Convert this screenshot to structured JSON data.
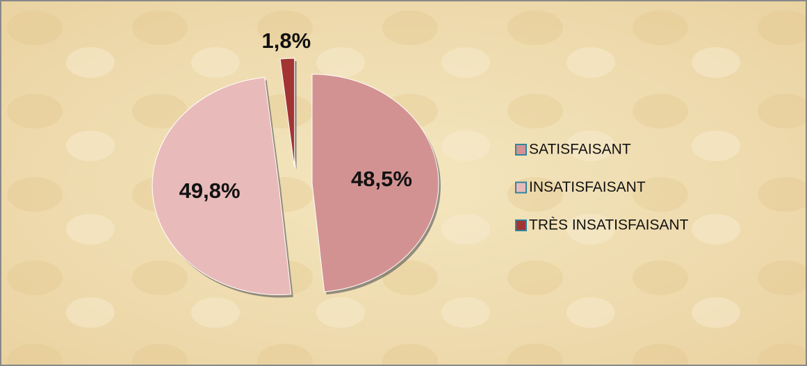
{
  "chart_data": {
    "type": "pie",
    "categories": [
      "SATISFAISANT",
      "INSATISFAISANT",
      "TRÈS INSATISFAISANT"
    ],
    "values": [
      48.5,
      49.8,
      1.8
    ],
    "value_labels": [
      "48,5%",
      "49,8%",
      "1,8%"
    ],
    "colors": [
      "#d39292",
      "#e9baba",
      "#a33434"
    ],
    "legend": "right"
  }
}
